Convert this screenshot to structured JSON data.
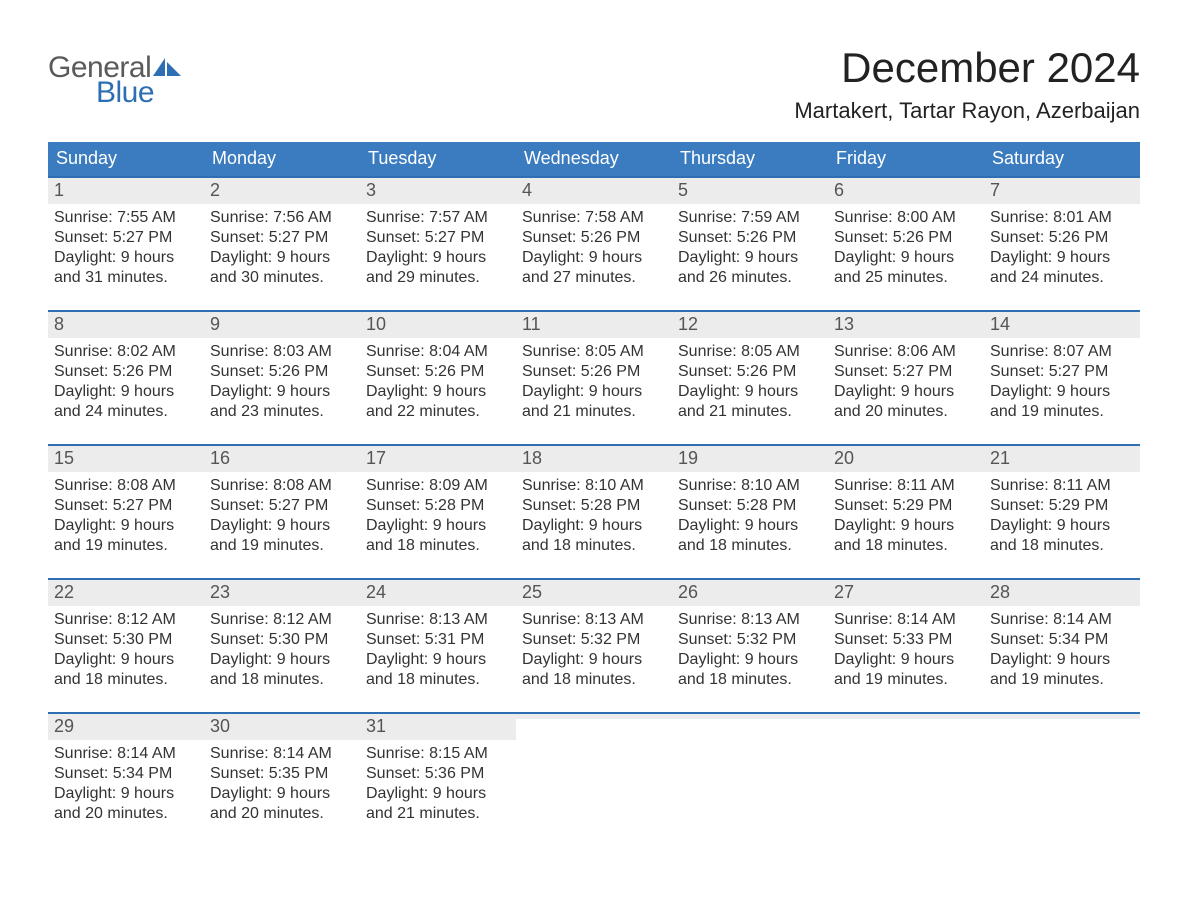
{
  "logo": {
    "word1": "General",
    "word2": "Blue"
  },
  "title": "December 2024",
  "location": "Martakert, Tartar Rayon, Azerbaijan",
  "colors": {
    "header_blue": "#3b7bbf",
    "accent_blue": "#2e6fb4",
    "day_strip": "#ececec",
    "text": "#333333",
    "logo_gray": "#5a5a5a",
    "logo_blue": "#2e6fb4",
    "background": "#ffffff"
  },
  "weekdays": [
    "Sunday",
    "Monday",
    "Tuesday",
    "Wednesday",
    "Thursday",
    "Friday",
    "Saturday"
  ],
  "weeks": [
    [
      {
        "n": "1",
        "sunrise": "Sunrise: 7:55 AM",
        "sunset": "Sunset: 5:27 PM",
        "dl1": "Daylight: 9 hours",
        "dl2": "and 31 minutes."
      },
      {
        "n": "2",
        "sunrise": "Sunrise: 7:56 AM",
        "sunset": "Sunset: 5:27 PM",
        "dl1": "Daylight: 9 hours",
        "dl2": "and 30 minutes."
      },
      {
        "n": "3",
        "sunrise": "Sunrise: 7:57 AM",
        "sunset": "Sunset: 5:27 PM",
        "dl1": "Daylight: 9 hours",
        "dl2": "and 29 minutes."
      },
      {
        "n": "4",
        "sunrise": "Sunrise: 7:58 AM",
        "sunset": "Sunset: 5:26 PM",
        "dl1": "Daylight: 9 hours",
        "dl2": "and 27 minutes."
      },
      {
        "n": "5",
        "sunrise": "Sunrise: 7:59 AM",
        "sunset": "Sunset: 5:26 PM",
        "dl1": "Daylight: 9 hours",
        "dl2": "and 26 minutes."
      },
      {
        "n": "6",
        "sunrise": "Sunrise: 8:00 AM",
        "sunset": "Sunset: 5:26 PM",
        "dl1": "Daylight: 9 hours",
        "dl2": "and 25 minutes."
      },
      {
        "n": "7",
        "sunrise": "Sunrise: 8:01 AM",
        "sunset": "Sunset: 5:26 PM",
        "dl1": "Daylight: 9 hours",
        "dl2": "and 24 minutes."
      }
    ],
    [
      {
        "n": "8",
        "sunrise": "Sunrise: 8:02 AM",
        "sunset": "Sunset: 5:26 PM",
        "dl1": "Daylight: 9 hours",
        "dl2": "and 24 minutes."
      },
      {
        "n": "9",
        "sunrise": "Sunrise: 8:03 AM",
        "sunset": "Sunset: 5:26 PM",
        "dl1": "Daylight: 9 hours",
        "dl2": "and 23 minutes."
      },
      {
        "n": "10",
        "sunrise": "Sunrise: 8:04 AM",
        "sunset": "Sunset: 5:26 PM",
        "dl1": "Daylight: 9 hours",
        "dl2": "and 22 minutes."
      },
      {
        "n": "11",
        "sunrise": "Sunrise: 8:05 AM",
        "sunset": "Sunset: 5:26 PM",
        "dl1": "Daylight: 9 hours",
        "dl2": "and 21 minutes."
      },
      {
        "n": "12",
        "sunrise": "Sunrise: 8:05 AM",
        "sunset": "Sunset: 5:26 PM",
        "dl1": "Daylight: 9 hours",
        "dl2": "and 21 minutes."
      },
      {
        "n": "13",
        "sunrise": "Sunrise: 8:06 AM",
        "sunset": "Sunset: 5:27 PM",
        "dl1": "Daylight: 9 hours",
        "dl2": "and 20 minutes."
      },
      {
        "n": "14",
        "sunrise": "Sunrise: 8:07 AM",
        "sunset": "Sunset: 5:27 PM",
        "dl1": "Daylight: 9 hours",
        "dl2": "and 19 minutes."
      }
    ],
    [
      {
        "n": "15",
        "sunrise": "Sunrise: 8:08 AM",
        "sunset": "Sunset: 5:27 PM",
        "dl1": "Daylight: 9 hours",
        "dl2": "and 19 minutes."
      },
      {
        "n": "16",
        "sunrise": "Sunrise: 8:08 AM",
        "sunset": "Sunset: 5:27 PM",
        "dl1": "Daylight: 9 hours",
        "dl2": "and 19 minutes."
      },
      {
        "n": "17",
        "sunrise": "Sunrise: 8:09 AM",
        "sunset": "Sunset: 5:28 PM",
        "dl1": "Daylight: 9 hours",
        "dl2": "and 18 minutes."
      },
      {
        "n": "18",
        "sunrise": "Sunrise: 8:10 AM",
        "sunset": "Sunset: 5:28 PM",
        "dl1": "Daylight: 9 hours",
        "dl2": "and 18 minutes."
      },
      {
        "n": "19",
        "sunrise": "Sunrise: 8:10 AM",
        "sunset": "Sunset: 5:28 PM",
        "dl1": "Daylight: 9 hours",
        "dl2": "and 18 minutes."
      },
      {
        "n": "20",
        "sunrise": "Sunrise: 8:11 AM",
        "sunset": "Sunset: 5:29 PM",
        "dl1": "Daylight: 9 hours",
        "dl2": "and 18 minutes."
      },
      {
        "n": "21",
        "sunrise": "Sunrise: 8:11 AM",
        "sunset": "Sunset: 5:29 PM",
        "dl1": "Daylight: 9 hours",
        "dl2": "and 18 minutes."
      }
    ],
    [
      {
        "n": "22",
        "sunrise": "Sunrise: 8:12 AM",
        "sunset": "Sunset: 5:30 PM",
        "dl1": "Daylight: 9 hours",
        "dl2": "and 18 minutes."
      },
      {
        "n": "23",
        "sunrise": "Sunrise: 8:12 AM",
        "sunset": "Sunset: 5:30 PM",
        "dl1": "Daylight: 9 hours",
        "dl2": "and 18 minutes."
      },
      {
        "n": "24",
        "sunrise": "Sunrise: 8:13 AM",
        "sunset": "Sunset: 5:31 PM",
        "dl1": "Daylight: 9 hours",
        "dl2": "and 18 minutes."
      },
      {
        "n": "25",
        "sunrise": "Sunrise: 8:13 AM",
        "sunset": "Sunset: 5:32 PM",
        "dl1": "Daylight: 9 hours",
        "dl2": "and 18 minutes."
      },
      {
        "n": "26",
        "sunrise": "Sunrise: 8:13 AM",
        "sunset": "Sunset: 5:32 PM",
        "dl1": "Daylight: 9 hours",
        "dl2": "and 18 minutes."
      },
      {
        "n": "27",
        "sunrise": "Sunrise: 8:14 AM",
        "sunset": "Sunset: 5:33 PM",
        "dl1": "Daylight: 9 hours",
        "dl2": "and 19 minutes."
      },
      {
        "n": "28",
        "sunrise": "Sunrise: 8:14 AM",
        "sunset": "Sunset: 5:34 PM",
        "dl1": "Daylight: 9 hours",
        "dl2": "and 19 minutes."
      }
    ],
    [
      {
        "n": "29",
        "sunrise": "Sunrise: 8:14 AM",
        "sunset": "Sunset: 5:34 PM",
        "dl1": "Daylight: 9 hours",
        "dl2": "and 20 minutes."
      },
      {
        "n": "30",
        "sunrise": "Sunrise: 8:14 AM",
        "sunset": "Sunset: 5:35 PM",
        "dl1": "Daylight: 9 hours",
        "dl2": "and 20 minutes."
      },
      {
        "n": "31",
        "sunrise": "Sunrise: 8:15 AM",
        "sunset": "Sunset: 5:36 PM",
        "dl1": "Daylight: 9 hours",
        "dl2": "and 21 minutes."
      },
      {
        "empty": true
      },
      {
        "empty": true
      },
      {
        "empty": true
      },
      {
        "empty": true
      }
    ]
  ]
}
